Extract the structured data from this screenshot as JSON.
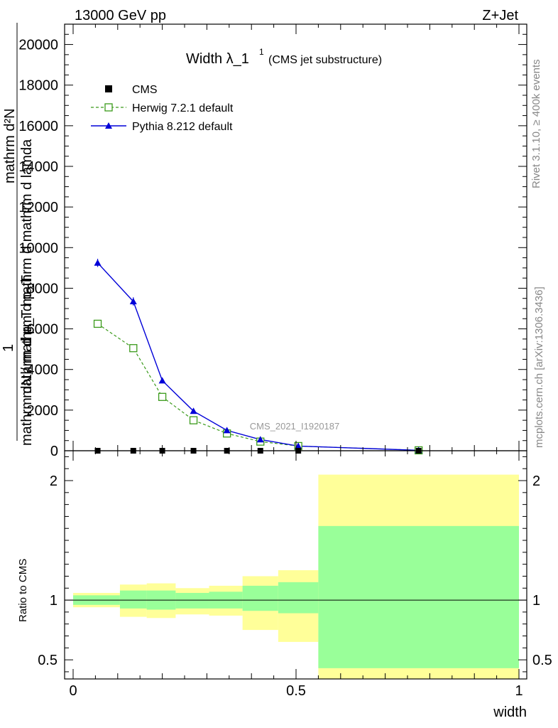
{
  "header": {
    "energy_label": "13000 GeV pp",
    "process_label": "Z+Jet",
    "title_main": "Width λ_1",
    "title_sup": "1",
    "title_sub": "(CMS jet substructure)",
    "watermark": "CMS_2021_I1920187",
    "side_rivet": "Rivet 3.1.10, ≥ 400k events",
    "side_mcplots": "mcplots.cern.ch [arXiv:1306.3436]"
  },
  "axes": {
    "main_ylabel_top": "mathrm d²N",
    "main_ylabel_top2": "mathrm d p_T mathrm d mathrm d lamda",
    "main_ylabel_one": "1",
    "main_ylabel_bottom": "mathrm dN / mathrm d p_T",
    "ratio_ylabel": "Ratio to CMS",
    "xlabel": "width"
  },
  "colors": {
    "cms": "#000000",
    "herwig": "#3a9a1a",
    "pythia": "#0000d8",
    "band_outer": "#ffff99",
    "band_inner": "#99ff99"
  },
  "chart_data": [
    {
      "type": "line",
      "panel": "main",
      "xlim": [
        0,
        1
      ],
      "ylim": [
        0,
        21000
      ],
      "y_ticks": [
        0,
        2000,
        4000,
        6000,
        8000,
        10000,
        12000,
        14000,
        16000,
        18000,
        20000
      ],
      "y_tick_labels": [
        "0",
        "2000",
        "4000",
        "6000",
        "8000",
        "10000",
        "12000",
        "14000",
        "16000",
        "18000",
        "20000"
      ],
      "legend_position": "top-left",
      "series": [
        {
          "name": "CMS",
          "marker": "square",
          "x": [
            0.055,
            0.135,
            0.2,
            0.27,
            0.345,
            0.42,
            0.505,
            0.775
          ],
          "y": [
            0,
            0,
            0,
            0,
            0,
            0,
            0,
            0
          ]
        },
        {
          "name": "Herwig 7.2.1 default",
          "marker": "open-square",
          "dash": true,
          "x": [
            0.055,
            0.135,
            0.2,
            0.27,
            0.345,
            0.42,
            0.505,
            0.775
          ],
          "y": [
            6250,
            5050,
            2650,
            1500,
            850,
            450,
            230,
            20
          ]
        },
        {
          "name": "Pythia 8.212 default",
          "marker": "triangle",
          "dash": false,
          "x": [
            0.055,
            0.135,
            0.2,
            0.27,
            0.345,
            0.42,
            0.505,
            0.775
          ],
          "y": [
            9250,
            7350,
            3450,
            1950,
            1000,
            550,
            230,
            20
          ],
          "yerr": [
            200,
            200,
            100,
            60,
            40,
            30,
            20,
            10
          ]
        }
      ]
    },
    {
      "type": "area",
      "panel": "ratio",
      "xlim": [
        0,
        1
      ],
      "ylim": [
        0.34,
        2.25
      ],
      "x_ticks": [
        0,
        0.5,
        1
      ],
      "x_tick_labels": [
        "0",
        "0.5",
        "1"
      ],
      "y_ticks": [
        0.5,
        1,
        2
      ],
      "y_tick_labels": [
        "0.5",
        "1",
        "2"
      ],
      "reference_line": 1,
      "bins": [
        {
          "x0": 0.0,
          "x1": 0.105,
          "inner": [
            0.96,
            1.04
          ],
          "outer": [
            0.94,
            1.06
          ]
        },
        {
          "x0": 0.105,
          "x1": 0.165,
          "inner": [
            0.93,
            1.08
          ],
          "outer": [
            0.86,
            1.13
          ]
        },
        {
          "x0": 0.165,
          "x1": 0.23,
          "inner": [
            0.92,
            1.08
          ],
          "outer": [
            0.85,
            1.14
          ]
        },
        {
          "x0": 0.23,
          "x1": 0.305,
          "inner": [
            0.93,
            1.06
          ],
          "outer": [
            0.88,
            1.1
          ]
        },
        {
          "x0": 0.305,
          "x1": 0.38,
          "inner": [
            0.93,
            1.07
          ],
          "outer": [
            0.87,
            1.12
          ]
        },
        {
          "x0": 0.38,
          "x1": 0.46,
          "inner": [
            0.91,
            1.12
          ],
          "outer": [
            0.75,
            1.2
          ]
        },
        {
          "x0": 0.46,
          "x1": 0.55,
          "inner": [
            0.89,
            1.15
          ],
          "outer": [
            0.65,
            1.25
          ]
        },
        {
          "x0": 0.55,
          "x1": 1.0,
          "inner": [
            0.43,
            1.62
          ],
          "outer": [
            0.34,
            2.05
          ]
        }
      ]
    }
  ]
}
